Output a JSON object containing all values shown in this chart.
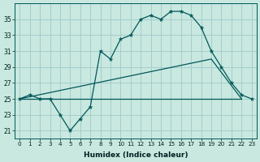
{
  "xlabel": "Humidex (Indice chaleur)",
  "bg_color": "#c8e8e0",
  "grid_color": "#a0c8c8",
  "line_color": "#005858",
  "x_values": [
    0,
    1,
    2,
    3,
    4,
    5,
    6,
    7,
    8,
    9,
    10,
    11,
    12,
    13,
    14,
    15,
    16,
    17,
    18,
    19,
    20,
    21,
    22,
    23
  ],
  "main_series": [
    25,
    25.5,
    25,
    25,
    23,
    21,
    22.5,
    24,
    31,
    30,
    32.5,
    33,
    35,
    35.5,
    35,
    36,
    36,
    35.5,
    34,
    31,
    29,
    27,
    25.5,
    25
  ],
  "lower_line": [
    [
      0,
      25
    ],
    [
      19,
      25
    ],
    [
      22,
      25
    ]
  ],
  "upper_line": [
    [
      0,
      25
    ],
    [
      19,
      30
    ],
    [
      22,
      25
    ]
  ],
  "ylim": [
    20,
    37
  ],
  "yticks": [
    21,
    23,
    25,
    27,
    29,
    31,
    33,
    35
  ],
  "xticks": [
    0,
    1,
    2,
    3,
    4,
    5,
    6,
    7,
    8,
    9,
    10,
    11,
    12,
    13,
    14,
    15,
    16,
    17,
    18,
    19,
    20,
    21,
    22,
    23
  ]
}
